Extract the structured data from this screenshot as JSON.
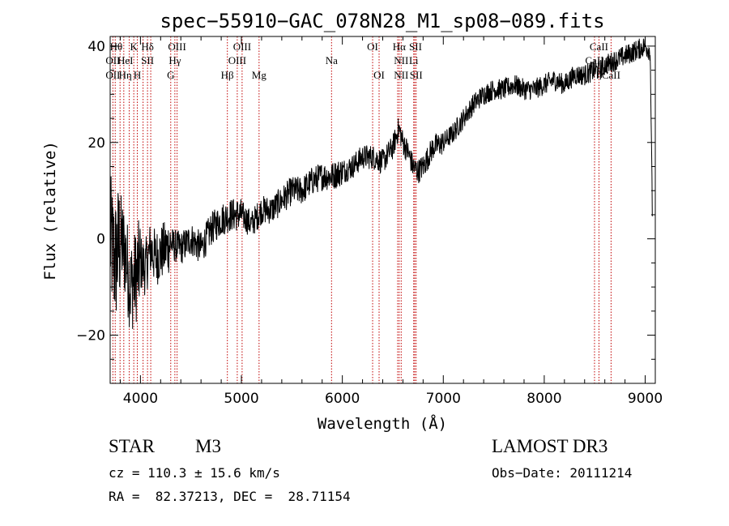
{
  "chart_data": {
    "type": "line",
    "title": "spec−55910−GAC_078N28_M1_sp08−089.fits",
    "xlabel": "Wavelength (Å)",
    "ylabel": "Flux (relative)",
    "xlim": [
      3700,
      9100
    ],
    "ylim": [
      -30,
      42
    ],
    "x_ticks": [
      {
        "value": 4000,
        "label": "4000"
      },
      {
        "value": 5000,
        "label": "5000"
      },
      {
        "value": 6000,
        "label": "6000"
      },
      {
        "value": 7000,
        "label": "7000"
      },
      {
        "value": 8000,
        "label": "8000"
      },
      {
        "value": 9000,
        "label": "9000"
      }
    ],
    "y_ticks": [
      {
        "value": -20,
        "label": "−20"
      },
      {
        "value": 0,
        "label": "0"
      },
      {
        "value": 20,
        "label": "20"
      },
      {
        "value": 40,
        "label": "40"
      }
    ],
    "series": [
      {
        "name": "flux",
        "color": "#000000",
        "x": [
          3700,
          3750,
          3800,
          3850,
          3900,
          3950,
          4000,
          4050,
          4100,
          4150,
          4200,
          4300,
          4400,
          4500,
          4600,
          4700,
          4800,
          4900,
          5000,
          5100,
          5200,
          5300,
          5400,
          5500,
          5600,
          5700,
          5800,
          5900,
          6000,
          6100,
          6200,
          6300,
          6400,
          6500,
          6560,
          6600,
          6650,
          6700,
          6750,
          6800,
          6850,
          6900,
          7000,
          7100,
          7200,
          7300,
          7400,
          7500,
          7600,
          7700,
          7800,
          7900,
          8000,
          8100,
          8200,
          8300,
          8400,
          8500,
          8550,
          8600,
          8700,
          8800,
          8900,
          9000,
          9050,
          9070
        ],
        "y": [
          0,
          -5,
          0,
          -3,
          -10,
          -8,
          -5,
          -6,
          -2,
          -4,
          -3,
          -1,
          -2,
          0,
          -2,
          2,
          4,
          5,
          5,
          3,
          6,
          6,
          8,
          10,
          10,
          12,
          13,
          13,
          14,
          15,
          17,
          17,
          16,
          19,
          23,
          20,
          18,
          15,
          14,
          15,
          17,
          19,
          20,
          22,
          25,
          28,
          30,
          31,
          31,
          32,
          31,
          31,
          32,
          33,
          32,
          34,
          34,
          35,
          35,
          36,
          37,
          38,
          39,
          40,
          39,
          6
        ]
      }
    ],
    "noise_amplitude": [
      {
        "from": 3700,
        "to": 3800,
        "amp": 14
      },
      {
        "from": 3800,
        "to": 4000,
        "amp": 10
      },
      {
        "from": 4000,
        "to": 4300,
        "amp": 6
      },
      {
        "from": 4300,
        "to": 5000,
        "amp": 3.5
      },
      {
        "from": 5000,
        "to": 6000,
        "amp": 3
      },
      {
        "from": 6000,
        "to": 7000,
        "amp": 2.6
      },
      {
        "from": 7000,
        "to": 9100,
        "amp": 2.2
      }
    ],
    "lines": {
      "color": "#c00000",
      "wavelengths": [
        3727,
        3750,
        3798,
        3835,
        3889,
        3934,
        3969,
        4026,
        4070,
        4102,
        4300,
        4341,
        4363,
        4861,
        4959,
        5007,
        5175,
        5893,
        6300,
        6364,
        6548,
        6563,
        6583,
        6707,
        6717,
        6731,
        8498,
        8542,
        8662
      ],
      "labels": [
        {
          "text": "Hθ",
          "x": 3760,
          "row": 0
        },
        {
          "text": "K",
          "x": 3934,
          "row": 0
        },
        {
          "text": "Hδ",
          "x": 4070,
          "row": 0
        },
        {
          "text": "OIII",
          "x": 4363,
          "row": 0
        },
        {
          "text": "OIII",
          "x": 5007,
          "row": 0
        },
        {
          "text": "OI",
          "x": 6300,
          "row": 0
        },
        {
          "text": "Hα",
          "x": 6563,
          "row": 0
        },
        {
          "text": "SII",
          "x": 6725,
          "row": 0
        },
        {
          "text": "CaII",
          "x": 8542,
          "row": 0
        },
        {
          "text": "OII",
          "x": 3727,
          "row": 1
        },
        {
          "text": "HeI",
          "x": 3850,
          "row": 1
        },
        {
          "text": "SII",
          "x": 4070,
          "row": 1
        },
        {
          "text": "Hγ",
          "x": 4341,
          "row": 1
        },
        {
          "text": "OIII",
          "x": 4959,
          "row": 1
        },
        {
          "text": "Na",
          "x": 5893,
          "row": 1
        },
        {
          "text": "NII",
          "x": 6583,
          "row": 1
        },
        {
          "text": "Li",
          "x": 6707,
          "row": 1
        },
        {
          "text": "CaII",
          "x": 8498,
          "row": 1
        },
        {
          "text": "OII",
          "x": 3727,
          "row": 2
        },
        {
          "text": "Hη",
          "x": 3850,
          "row": 2
        },
        {
          "text": "H",
          "x": 3969,
          "row": 2
        },
        {
          "text": "G",
          "x": 4300,
          "row": 2
        },
        {
          "text": "Hβ",
          "x": 4861,
          "row": 2
        },
        {
          "text": "Mg",
          "x": 5175,
          "row": 2
        },
        {
          "text": "OI",
          "x": 6364,
          "row": 2
        },
        {
          "text": "NII",
          "x": 6583,
          "row": 2
        },
        {
          "text": "SII",
          "x": 6731,
          "row": 2
        },
        {
          "text": "CaII",
          "x": 8662,
          "row": 2
        }
      ]
    }
  },
  "info": {
    "object_class": "STAR",
    "subclass": "M3",
    "survey": "LAMOST DR3",
    "cz": "cz = 110.3 ± 15.6 km/s",
    "obs_date": "Obs−Date: 20111214",
    "coords": "RA =  82.37213, DEC =  28.71154"
  }
}
